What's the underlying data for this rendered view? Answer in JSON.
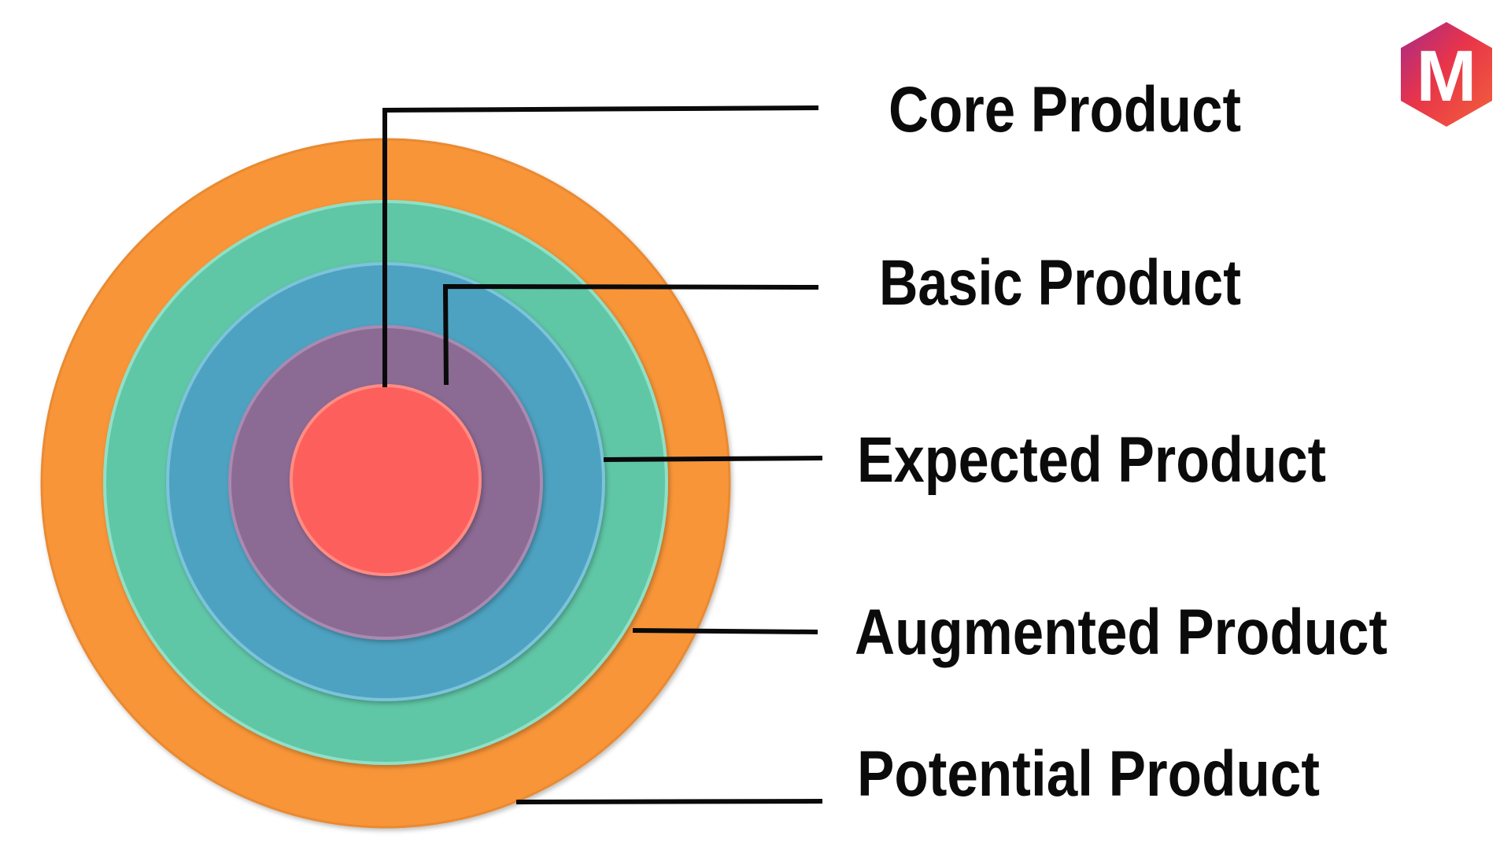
{
  "diagram": {
    "levels": [
      {
        "label": "Core Product",
        "color": "#fd5e5c"
      },
      {
        "label": "Basic Product",
        "color": "#8b6a93"
      },
      {
        "label": "Expected Product",
        "color": "#4ea2c1"
      },
      {
        "label": "Augmented Product",
        "color": "#5ec6a6"
      },
      {
        "label": "Potential Product",
        "color": "#f89538"
      }
    ]
  },
  "logo": {
    "letter": "M",
    "colors": [
      "#a52a8a",
      "#e8344a",
      "#f2613a"
    ]
  }
}
